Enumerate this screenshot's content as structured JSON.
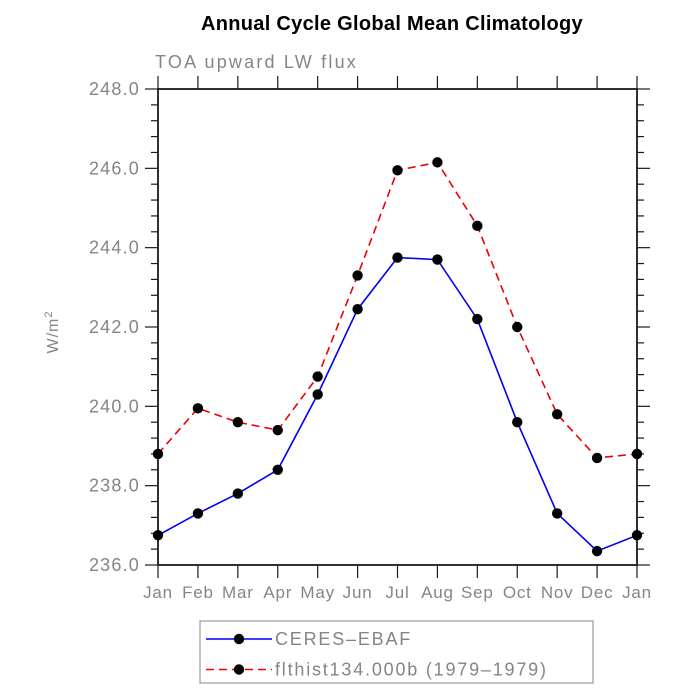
{
  "title": "Annual Cycle Global Mean Climatology",
  "subtitle": "TOA upward LW flux",
  "y_axis": {
    "unit_base": "W/m",
    "unit_sup": "2"
  },
  "colors": {
    "series_blue": "#0000ee",
    "series_red": "#ee0000",
    "marker_black": "#000000",
    "label_gray": "#858585",
    "axis_black": "#1a1a1a",
    "legend_border_gray": "#9a9a9a",
    "title_black": "#000000"
  },
  "chart_data": {
    "type": "line",
    "title": "Annual Cycle Global Mean Climatology",
    "subtitle": "TOA upward LW flux",
    "ylabel": "W/m^2",
    "xlabel": "",
    "grid": false,
    "legend_position": "bottom",
    "categories": [
      "Jan",
      "Feb",
      "Mar",
      "Apr",
      "May",
      "Jun",
      "Jul",
      "Aug",
      "Sep",
      "Oct",
      "Nov",
      "Dec",
      "Jan"
    ],
    "ylim": [
      236.0,
      248.0
    ],
    "ytick_major_step": 2.0,
    "ytick_minor_step": 0.4,
    "ytick_labels": [
      "236.0",
      "238.0",
      "240.0",
      "242.0",
      "244.0",
      "246.0",
      "248.0"
    ],
    "series": [
      {
        "name": "CERES–EBAF",
        "color": "#0000ee",
        "line_style": "solid",
        "marker": "filled-circle",
        "marker_color": "#000000",
        "values": [
          236.75,
          237.3,
          237.8,
          238.4,
          240.3,
          242.45,
          243.75,
          243.7,
          242.2,
          239.6,
          237.3,
          236.35,
          236.75
        ]
      },
      {
        "name": "flthist134.000b (1979–1979)",
        "color": "#ee0000",
        "line_style": "dashed",
        "marker": "filled-circle",
        "marker_color": "#000000",
        "values": [
          238.8,
          239.95,
          239.6,
          239.4,
          240.75,
          243.3,
          245.95,
          246.15,
          244.55,
          242.0,
          239.8,
          238.7,
          238.8
        ]
      }
    ]
  }
}
